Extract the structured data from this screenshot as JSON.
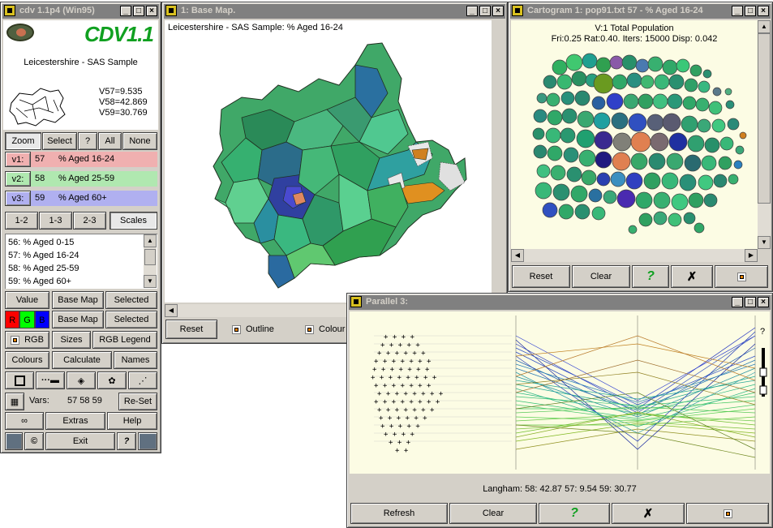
{
  "cdv": {
    "title": "cdv 1.1p4 (Win95)",
    "logo": "CDV1.1",
    "region": "Leicestershire - SAS Sample",
    "stats": [
      "V57=9.535",
      "V58=42.869",
      "V59=30.769"
    ],
    "mode_buttons": [
      "Zoom",
      "Select",
      "?",
      "All",
      "None"
    ],
    "vars": [
      {
        "tag": "v1:",
        "num": "57",
        "label": "% Aged 16-24",
        "color": "#f0b0b0"
      },
      {
        "tag": "v2:",
        "num": "58",
        "label": "% Aged 25-59",
        "color": "#b0e8b0"
      },
      {
        "tag": "v3:",
        "num": "59",
        "label": "% Aged 60+",
        "color": "#b0b0f0"
      }
    ],
    "pair_buttons": [
      "1-2",
      "1-3",
      "2-3",
      "Scales"
    ],
    "var_list": [
      "56: % Aged 0-15",
      "57: % Aged 16-24",
      "58: % Aged 25-59",
      "59: % Aged 60+"
    ],
    "row1": [
      "Value",
      "Base Map",
      "Selected"
    ],
    "rgb_letters": [
      "R",
      "G",
      "B"
    ],
    "row2": [
      "Base Map",
      "Selected"
    ],
    "row3": [
      "RGB",
      "Sizes",
      "RGB Legend"
    ],
    "row4": [
      "Colours",
      "Calculate",
      "Names"
    ],
    "vars_label": "Vars:",
    "vars_value": "57 58 59",
    "reset_label": "Re-Set",
    "row6": [
      "Extras",
      "Help"
    ],
    "copyright": "©",
    "exit_label": "Exit",
    "help_glyph": "?"
  },
  "basemap": {
    "title": "1: Base Map.",
    "header": "Leicestershire - SAS Sample:    % Aged 16-24",
    "reset": "Reset",
    "outline": "Outline",
    "colour": "Colour"
  },
  "cartogram": {
    "title": "Cartogram 1: pop91.txt 57 - % Aged 16-24",
    "line1": "V:1 Total Population",
    "line2": "Fri:0.25 Rat:0.40. Iters: 15000 Disp: 0.042",
    "buttons": [
      "Reset",
      "Clear"
    ],
    "help": "?",
    "cross": "✗"
  },
  "parallel": {
    "title": "Parallel 3:",
    "status": "Langham:  58: 42.87  57: 9.54  59: 30.77",
    "axis_help": "?",
    "buttons": [
      "Refresh",
      "Clear"
    ],
    "help": "?",
    "cross": "✗"
  }
}
